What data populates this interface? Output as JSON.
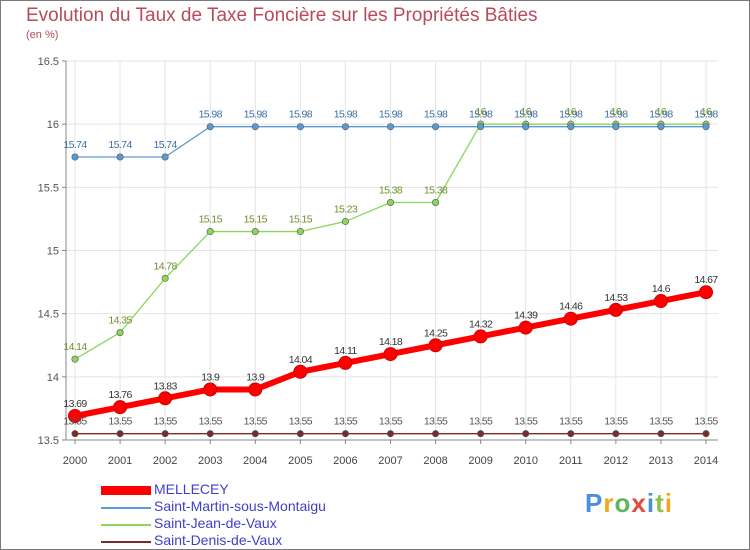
{
  "chart_data": {
    "type": "line",
    "title": "Evolution du Taux de Taxe Foncière sur les Propriétés Bâties",
    "unit": "(en %)",
    "xlabel": "",
    "ylabel": "(en %)",
    "ylim": [
      13.5,
      16.5
    ],
    "yticks": [
      "13.5",
      "14",
      "14.5",
      "15",
      "15.5",
      "16",
      "16.5"
    ],
    "x": [
      "2000",
      "2001",
      "2002",
      "2003",
      "2004",
      "2005",
      "2006",
      "2007",
      "2008",
      "2009",
      "2010",
      "2011",
      "2012",
      "2013",
      "2014"
    ],
    "grid": true,
    "legend_position": "bottom-left",
    "series": [
      {
        "name": "MELLECEY",
        "color": "#ff0000",
        "label_color": "#333333",
        "bold": true,
        "values": [
          13.69,
          13.76,
          13.83,
          13.9,
          13.9,
          14.04,
          14.11,
          14.18,
          14.25,
          14.32,
          14.39,
          14.46,
          14.53,
          14.6,
          14.67
        ],
        "labels": [
          "13.69",
          "13.76",
          "13.83",
          "13.9",
          "13.9",
          "14.04",
          "14.11",
          "14.18",
          "14.25",
          "14.32",
          "14.39",
          "14.46",
          "14.53",
          "14.6",
          "14.67"
        ]
      },
      {
        "name": "Saint-Martin-sous-Montaigu",
        "color": "#5b9bd5",
        "label_color": "#3b6ea5",
        "bold": false,
        "values": [
          15.74,
          15.74,
          15.74,
          15.98,
          15.98,
          15.98,
          15.98,
          15.98,
          15.98,
          15.98,
          15.98,
          15.98,
          15.98,
          15.98,
          15.98
        ],
        "labels": [
          "15.74",
          "15.74",
          "15.74",
          "15.98",
          "15.98",
          "15.98",
          "15.98",
          "15.98",
          "15.98",
          "15.98",
          "15.98",
          "15.98",
          "15.98",
          "15.98",
          "15.98"
        ]
      },
      {
        "name": "Saint-Jean-de-Vaux",
        "color": "#8cd65c",
        "label_color": "#6f8f2f",
        "bold": false,
        "values": [
          14.14,
          14.35,
          14.78,
          15.15,
          15.15,
          15.15,
          15.23,
          15.38,
          15.38,
          16,
          16,
          16,
          16,
          16,
          16
        ],
        "labels": [
          "14.14",
          "14.35",
          "14.78",
          "15.15",
          "15.15",
          "15.15",
          "15.23",
          "15.38",
          "15.38",
          "16",
          "16",
          "16",
          "16",
          "16",
          "16"
        ]
      },
      {
        "name": "Saint-Denis-de-Vaux",
        "color": "#7a2c2c",
        "label_color": "#555555",
        "bold": false,
        "values": [
          13.55,
          13.55,
          13.55,
          13.55,
          13.55,
          13.55,
          13.55,
          13.55,
          13.55,
          13.55,
          13.55,
          13.55,
          13.55,
          13.55,
          13.55
        ],
        "labels": [
          "13.55",
          "13.55",
          "13.55",
          "13.55",
          "13.55",
          "13.55",
          "13.55",
          "13.55",
          "13.55",
          "13.55",
          "13.55",
          "13.55",
          "13.55",
          "13.55",
          "13.55"
        ]
      }
    ]
  },
  "brand": {
    "logo_text": "Proxiti",
    "letter_colors": [
      "#4a90d9",
      "#f2a71b",
      "#5bb85b",
      "#e34b3c",
      "#4a90d9",
      "#8bc34a",
      "#f2a71b"
    ]
  }
}
